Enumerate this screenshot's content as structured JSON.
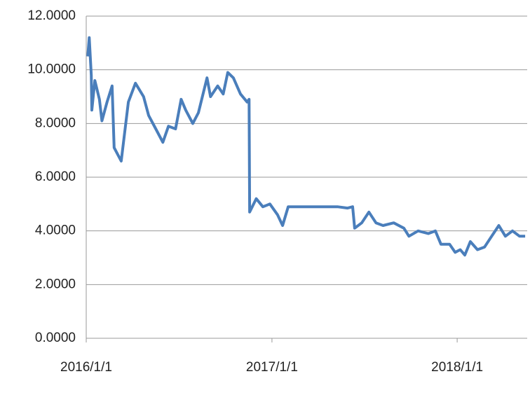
{
  "chart_data": {
    "type": "line",
    "x": [
      "2016/1/4",
      "2016/1/7",
      "2016/1/11",
      "2016/1/12",
      "2016/1/18",
      "2016/1/27",
      "2016/2/1",
      "2016/2/11",
      "2016/2/21",
      "2016/2/25",
      "2016/3/10",
      "2016/3/24",
      "2016/4/7",
      "2016/4/23",
      "2016/5/3",
      "2016/5/17",
      "2016/5/31",
      "2016/6/11",
      "2016/6/25",
      "2016/7/6",
      "2016/7/15",
      "2016/7/29",
      "2016/8/9",
      "2016/8/26",
      "2016/9/2",
      "2016/9/16",
      "2016/9/27",
      "2016/10/6",
      "2016/10/17",
      "2016/10/31",
      "2016/11/13",
      "2016/11/17",
      "2016/11/18",
      "2016/12/1",
      "2016/12/14",
      "2016/12/28",
      "2017/1/12",
      "2017/1/22",
      "2017/2/2",
      "2017/2/16",
      "2017/3/15",
      "2017/4/12",
      "2017/5/10",
      "2017/5/30",
      "2017/6/9",
      "2017/6/13",
      "2017/6/27",
      "2017/7/11",
      "2017/7/25",
      "2017/8/8",
      "2017/8/29",
      "2017/9/18",
      "2017/9/28",
      "2017/10/16",
      "2017/11/5",
      "2017/11/19",
      "2017/11/30",
      "2017/12/17",
      "2017/12/28",
      "2018/1/7",
      "2018/1/16",
      "2018/1/27",
      "2018/2/10",
      "2018/2/24",
      "2018/3/10",
      "2018/3/24",
      "2018/4/6",
      "2018/4/20",
      "2018/5/4",
      "2018/5/15"
    ],
    "series": [
      {
        "color": "#4a7ebb",
        "values": [
          10.5,
          11.2,
          9.8,
          8.5,
          9.6,
          8.9,
          8.1,
          8.8,
          9.4,
          7.1,
          6.6,
          8.8,
          9.5,
          9.0,
          8.3,
          7.8,
          7.3,
          7.9,
          7.8,
          8.9,
          8.5,
          8.0,
          8.4,
          9.7,
          9.0,
          9.4,
          9.1,
          9.9,
          9.7,
          9.1,
          8.8,
          8.9,
          4.7,
          5.2,
          4.9,
          5.0,
          4.6,
          4.2,
          4.9,
          4.9,
          4.9,
          4.9,
          4.9,
          4.85,
          4.9,
          4.1,
          4.3,
          4.7,
          4.3,
          4.2,
          4.3,
          4.1,
          3.8,
          4.0,
          3.9,
          4.0,
          3.5,
          3.5,
          3.2,
          3.3,
          3.1,
          3.6,
          3.3,
          3.4,
          3.8,
          4.2,
          3.8,
          4.0,
          3.8,
          3.8
        ]
      }
    ],
    "xlim": [
      "2016/1/1",
      "2018/5/19"
    ],
    "xticks": [
      "2016/1/1",
      "2017/1/1",
      "2018/1/1"
    ],
    "ylim": [
      0,
      12
    ],
    "yticks": [
      {
        "value": 0,
        "label": "0.0000"
      },
      {
        "value": 2,
        "label": "2.0000"
      },
      {
        "value": 4,
        "label": "4.0000"
      },
      {
        "value": 6,
        "label": "6.0000"
      },
      {
        "value": 8,
        "label": "8.0000"
      },
      {
        "value": 10,
        "label": "10.0000"
      },
      {
        "value": 12,
        "label": "12.0000"
      }
    ],
    "grid": true
  }
}
